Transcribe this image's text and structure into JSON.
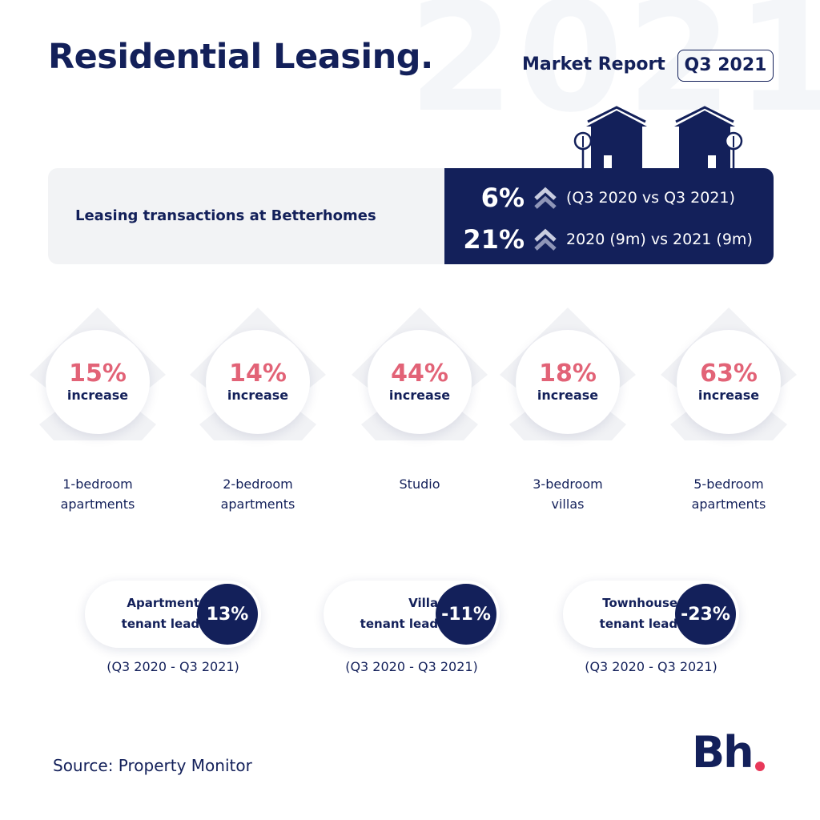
{
  "header": {
    "watermark": "2021",
    "title": "Residential Leasing.",
    "report_label": "Market Report",
    "report_period": "Q3 2021"
  },
  "banner": {
    "label": "Leasing transactions at Betterhomes",
    "stats": [
      {
        "value": "6%",
        "desc": "(Q3 2020 vs Q3 2021)",
        "icon": "double-chevron-up-icon"
      },
      {
        "value": "21%",
        "desc": "2020 (9m) vs 2021 (9m)",
        "icon": "double-chevron-up-icon"
      }
    ]
  },
  "categories": [
    {
      "pct": "15%",
      "inc": "increase",
      "line1": "1-bedroom",
      "line2": "apartments"
    },
    {
      "pct": "14%",
      "inc": "increase",
      "line1": "2-bedroom",
      "line2": "apartments"
    },
    {
      "pct": "44%",
      "inc": "increase",
      "line1": "Studio",
      "line2": ""
    },
    {
      "pct": "18%",
      "inc": "increase",
      "line1": "3-bedroom",
      "line2": "villas"
    },
    {
      "pct": "63%",
      "inc": "increase",
      "line1": "5-bedroom",
      "line2": "apartments"
    }
  ],
  "leads": [
    {
      "line1": "Apartments",
      "line2": "tenant leads",
      "value": "13%",
      "period": "(Q3 2020 - Q3 2021)"
    },
    {
      "line1": "Villas",
      "line2": "tenant leads",
      "value": "-11%",
      "period": "(Q3 2020 - Q3 2021)"
    },
    {
      "line1": "Townhouses",
      "line2": "tenant leads",
      "value": "-23%",
      "period": "(Q3 2020 - Q3 2021)"
    }
  ],
  "footer": {
    "source": "Source: Property Monitor",
    "logo": "Bh"
  },
  "colors": {
    "navy": "#13205a",
    "accent_pink": "#e26377",
    "logo_dot": "#e8395a",
    "banner_bg": "#f2f3f5"
  }
}
